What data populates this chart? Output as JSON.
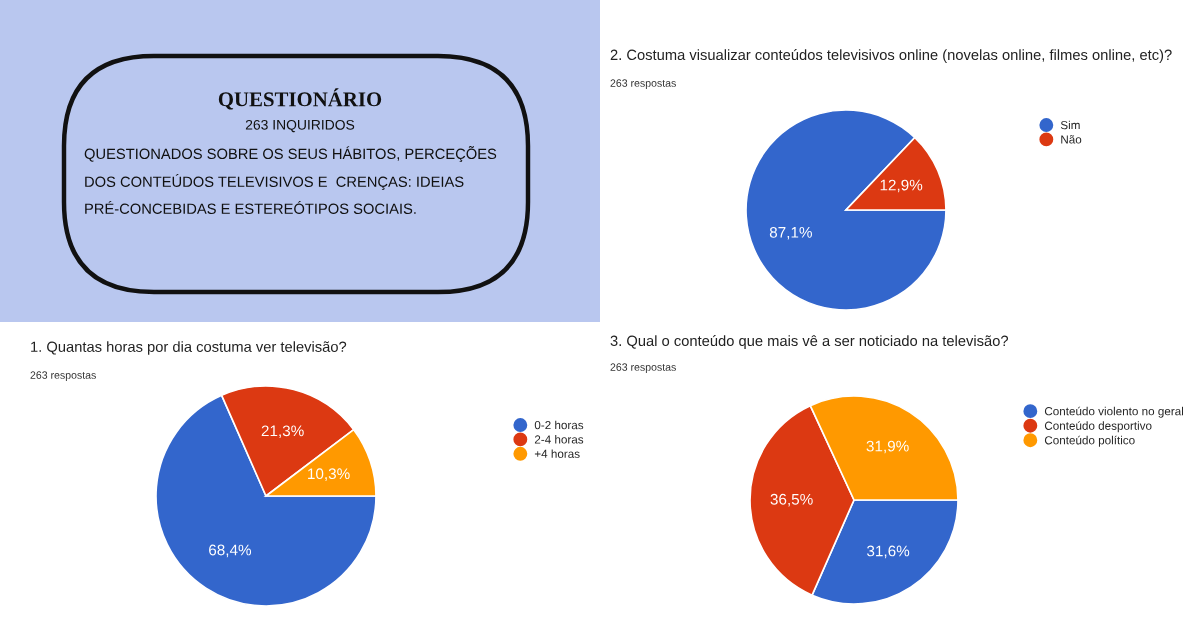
{
  "chart_data": [
    {
      "type": "other",
      "title": "QUESTIONÁRIO",
      "subtitle": "263 INQUIRIDOS",
      "annotations": [
        "QUESTIONADOS SOBRE OS SEUS HÁBITOS, PERCEÇÕES",
        "DOS CONTEÚDOS TELEVISIVOS E  CRENÇAS: IDEIAS",
        "PRÉ-CONCEBIDAS E ESTEREÓTIPOS SOCIAIS."
      ]
    },
    {
      "type": "pie",
      "title": "2. Costuma visualizar conteúdos televisivos online (novelas online, filmes online, etc)?",
      "subtitle": "263 respostas",
      "categories": [
        "Sim",
        "Não"
      ],
      "values": [
        87.1,
        12.9
      ],
      "colors": [
        "#3366cc",
        "#dc3912"
      ],
      "value_labels": [
        "87,1%",
        "12,9%"
      ],
      "legend": "right"
    },
    {
      "type": "pie",
      "title": "1. Quantas horas por dia costuma ver televisão?",
      "subtitle": "263 respostas",
      "categories": [
        "0-2 horas",
        "2-4 horas",
        "+4 horas"
      ],
      "values": [
        68.4,
        21.3,
        10.3
      ],
      "colors": [
        "#3366cc",
        "#dc3912",
        "#ff9900"
      ],
      "value_labels": [
        "68,4%",
        "21,3%",
        "10,3%"
      ],
      "legend": "right"
    },
    {
      "type": "pie",
      "title": "3. Qual o conteúdo que mais vê a ser noticiado na televisão?",
      "subtitle": "263 respostas",
      "categories": [
        "Conteúdo violento no geral",
        "Conteúdo desportivo",
        "Conteúdo político"
      ],
      "values": [
        31.6,
        36.5,
        31.9
      ],
      "colors": [
        "#3366cc",
        "#dc3912",
        "#ff9900"
      ],
      "value_labels": [
        "31,6%",
        "36,5%",
        "31,9%"
      ],
      "legend": "right"
    }
  ]
}
